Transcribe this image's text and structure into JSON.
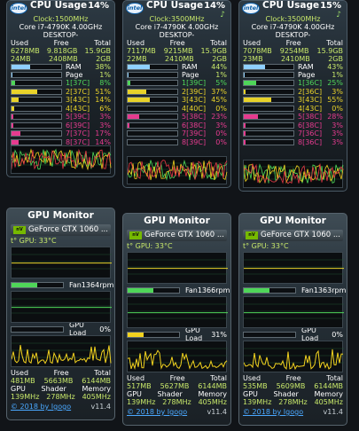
{
  "colors": {
    "mem_fill": "#8fd0ff",
    "core_fill": "#e8d22a",
    "green": "#c8e86a",
    "graph_red": "#e63946",
    "graph_yellow": "#f2d21f",
    "graph_green": "#4fd659"
  },
  "cpu_gadgets": [
    {
      "title": "CPU Usage",
      "usage": "14%",
      "clock": "Clock:1500MHz",
      "model": "Core i7-4790K 4.00GHz",
      "host": "DESKTOP-",
      "mem_headers": [
        "Used",
        "Free",
        "Total"
      ],
      "mem_values": [
        "6278MB",
        "9.818GB",
        "15.9GB"
      ],
      "swap_values": [
        "24MB",
        "2408MB",
        "2GB"
      ],
      "ram": {
        "label": "RAM",
        "value": "38%",
        "fill": 0.38
      },
      "page": {
        "label": "Page",
        "value": "1%",
        "fill": 0.01
      },
      "cores": [
        {
          "label": "1[37C]",
          "value": "8%",
          "fill": 0.08,
          "color": "#4fd659"
        },
        {
          "label": "2[37C]",
          "value": "51%",
          "fill": 0.51,
          "color": "#e8d22a"
        },
        {
          "label": "3[43C]",
          "value": "14%",
          "fill": 0.14,
          "color": "#e8d22a"
        },
        {
          "label": "4[43C]",
          "value": "6%",
          "fill": 0.06,
          "color": "#e8d22a"
        },
        {
          "label": "5[39C]",
          "value": "3%",
          "fill": 0.03,
          "color": "#e63b8f"
        },
        {
          "label": "6[39C]",
          "value": "3%",
          "fill": 0.03,
          "color": "#e63b8f"
        },
        {
          "label": "7[37C]",
          "value": "17%",
          "fill": 0.17,
          "color": "#e63b8f"
        },
        {
          "label": "8[37C]",
          "value": "14%",
          "fill": 0.14,
          "color": "#e63b8f"
        }
      ]
    },
    {
      "title": "CPU Usage",
      "usage": "14%",
      "clock": "Clock:3500MHz",
      "model": "Core i7-4790K 4.00GHz",
      "host": "DESKTOP-",
      "mem_headers": [
        "Used",
        "Free",
        "Total"
      ],
      "mem_values": [
        "7117MB",
        "9215MB",
        "15.9GB"
      ],
      "swap_values": [
        "22MB",
        "2410MB",
        "2GB"
      ],
      "ram": {
        "label": "RAM",
        "value": "44%",
        "fill": 0.44
      },
      "page": {
        "label": "Page",
        "value": "1%",
        "fill": 0.01
      },
      "cores": [
        {
          "label": "1[39C]",
          "value": "5%",
          "fill": 0.05,
          "color": "#4fd659"
        },
        {
          "label": "2[39C]",
          "value": "37%",
          "fill": 0.37,
          "color": "#e8d22a"
        },
        {
          "label": "3[43C]",
          "value": "45%",
          "fill": 0.45,
          "color": "#e8d22a"
        },
        {
          "label": "4[40C]",
          "value": "0%",
          "fill": 0.0,
          "color": "#e8d22a"
        },
        {
          "label": "5[38C]",
          "value": "23%",
          "fill": 0.23,
          "color": "#e63b8f"
        },
        {
          "label": "6[38C]",
          "value": "3%",
          "fill": 0.03,
          "color": "#e63b8f"
        },
        {
          "label": "7[39C]",
          "value": "0%",
          "fill": 0.0,
          "color": "#e63b8f"
        },
        {
          "label": "8[39C]",
          "value": "0%",
          "fill": 0.0,
          "color": "#e63b8f"
        }
      ]
    },
    {
      "title": "CPU Usage",
      "usage": "15%",
      "clock": "Clock:3500MHz",
      "model": "Core i7-4790K 4.00GHz",
      "host": "DESKTOP-",
      "mem_headers": [
        "Used",
        "Free",
        "Total"
      ],
      "mem_values": [
        "7078MB",
        "9254MB",
        "15.9GB"
      ],
      "swap_values": [
        "23MB",
        "2410MB",
        "2GB"
      ],
      "ram": {
        "label": "RAM",
        "value": "43%",
        "fill": 0.43
      },
      "page": {
        "label": "Page",
        "value": "1%",
        "fill": 0.01
      },
      "cores": [
        {
          "label": "1[36C]",
          "value": "25%",
          "fill": 0.25,
          "color": "#4fd659"
        },
        {
          "label": "2[36C]",
          "value": "3%",
          "fill": 0.03,
          "color": "#e8d22a"
        },
        {
          "label": "3[43C]",
          "value": "55%",
          "fill": 0.55,
          "color": "#e8d22a"
        },
        {
          "label": "4[43C]",
          "value": "0%",
          "fill": 0.0,
          "color": "#e8d22a"
        },
        {
          "label": "5[38C]",
          "value": "28%",
          "fill": 0.28,
          "color": "#e63b8f"
        },
        {
          "label": "6[38C]",
          "value": "3%",
          "fill": 0.03,
          "color": "#e63b8f"
        },
        {
          "label": "7[36C]",
          "value": "3%",
          "fill": 0.03,
          "color": "#e63b8f"
        },
        {
          "label": "8[36C]",
          "value": "3%",
          "fill": 0.03,
          "color": "#e63b8f"
        }
      ]
    }
  ],
  "gpu_gadgets": [
    {
      "title": "GPU Monitor",
      "gpu_name": "GeForce GTX 1060 ...",
      "temp": "t° GPU: 33°C",
      "fan": {
        "label": "Fan",
        "value": "1364rpm",
        "fill": 0.5
      },
      "load": {
        "label": "GPU Load",
        "value": "0%",
        "fill": 0.0
      },
      "mem_headers": [
        "Used",
        "Free",
        "Total"
      ],
      "mem_values": [
        "481MB",
        "5663MB",
        "6144MB"
      ],
      "clock_headers": [
        "GPU",
        "Shader",
        "Memory"
      ],
      "clock_values": [
        "139MHz",
        "278MHz",
        "405MHz"
      ],
      "copyright": "© 2018 by Igogo",
      "version": "v11.4"
    },
    {
      "title": "GPU Monitor",
      "gpu_name": "GeForce GTX 1060 ...",
      "temp": "t° GPU: 33°C",
      "fan": {
        "label": "Fan",
        "value": "1366rpm",
        "fill": 0.5
      },
      "load": {
        "label": "GPU Load",
        "value": "31%",
        "fill": 0.31
      },
      "mem_headers": [
        "Used",
        "Free",
        "Total"
      ],
      "mem_values": [
        "517MB",
        "5627MB",
        "6144MB"
      ],
      "clock_headers": [
        "GPU",
        "Shader",
        "Memory"
      ],
      "clock_values": [
        "139MHz",
        "278MHz",
        "405MHz"
      ],
      "copyright": "© 2018 by Igogo",
      "version": "v11.4"
    },
    {
      "title": "GPU Monitor",
      "gpu_name": "GeForce GTX 1060 ...",
      "temp": "t° GPU: 33°C",
      "fan": {
        "label": "Fan",
        "value": "1363rpm",
        "fill": 0.5
      },
      "load": {
        "label": "GPU Load",
        "value": "0%",
        "fill": 0.0
      },
      "mem_headers": [
        "Used",
        "Free",
        "Total"
      ],
      "mem_values": [
        "535MB",
        "5609MB",
        "6144MB"
      ],
      "clock_headers": [
        "GPU",
        "Shader",
        "Memory"
      ],
      "clock_values": [
        "139MHz",
        "278MHz",
        "405MHz"
      ],
      "copyright": "© 2018 by Igogo",
      "version": "v11.4"
    }
  ]
}
